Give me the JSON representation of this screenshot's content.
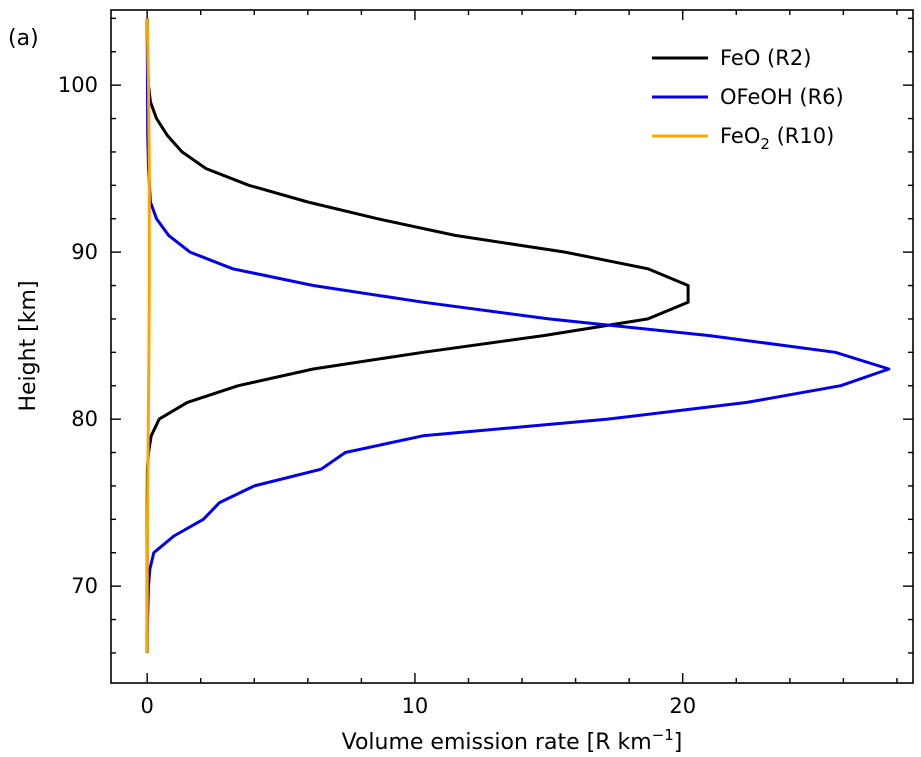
{
  "panel_label": "(a)",
  "chart_data": {
    "type": "line",
    "xlabel": "Volume emission rate [R km",
    "xlabel_sup": "−1",
    "xlabel_tail": "]",
    "ylabel": "Height [km]",
    "xlim": [
      -1.35,
      28.6
    ],
    "ylim": [
      64.2,
      104.5
    ],
    "xticks": [
      0,
      10,
      20
    ],
    "yticks": [
      70,
      80,
      90,
      100
    ],
    "x_minor_step": 2,
    "y_minor_step": 2,
    "legend_position": "top-right",
    "series": [
      {
        "name": "FeO (R2)",
        "color": "#000000",
        "points": [
          [
            0.0,
            104
          ],
          [
            0.02,
            101
          ],
          [
            0.05,
            100
          ],
          [
            0.12,
            99
          ],
          [
            0.35,
            98
          ],
          [
            0.75,
            97
          ],
          [
            1.3,
            96
          ],
          [
            2.2,
            95
          ],
          [
            3.8,
            94
          ],
          [
            6.0,
            93
          ],
          [
            8.6,
            92
          ],
          [
            11.5,
            91
          ],
          [
            15.6,
            90
          ],
          [
            18.7,
            89
          ],
          [
            20.2,
            88
          ],
          [
            20.2,
            87
          ],
          [
            18.7,
            86
          ],
          [
            14.8,
            85
          ],
          [
            10.3,
            84
          ],
          [
            6.2,
            83
          ],
          [
            3.4,
            82
          ],
          [
            1.5,
            81
          ],
          [
            0.45,
            80
          ],
          [
            0.15,
            79
          ],
          [
            0.05,
            78
          ],
          [
            0.01,
            77
          ],
          [
            0.0,
            75
          ],
          [
            0.0,
            70
          ],
          [
            0.0,
            66
          ]
        ]
      },
      {
        "name": "OFeOH (R6)",
        "color": "#0000ee",
        "points": [
          [
            0.0,
            104
          ],
          [
            0.02,
            97
          ],
          [
            0.05,
            95
          ],
          [
            0.12,
            93
          ],
          [
            0.35,
            92
          ],
          [
            0.8,
            91
          ],
          [
            1.6,
            90
          ],
          [
            3.2,
            89
          ],
          [
            6.2,
            88
          ],
          [
            10.3,
            87
          ],
          [
            15.0,
            86
          ],
          [
            21.0,
            85
          ],
          [
            25.7,
            84
          ],
          [
            27.7,
            83
          ],
          [
            25.9,
            82
          ],
          [
            22.4,
            81
          ],
          [
            17.2,
            80
          ],
          [
            10.3,
            79
          ],
          [
            7.4,
            78
          ],
          [
            6.5,
            77
          ],
          [
            4.0,
            76
          ],
          [
            2.7,
            75
          ],
          [
            2.1,
            74
          ],
          [
            1.0,
            73
          ],
          [
            0.25,
            72
          ],
          [
            0.1,
            71
          ],
          [
            0.05,
            70
          ],
          [
            0.0,
            67
          ],
          [
            0.0,
            66
          ]
        ]
      },
      {
        "name": "FeO",
        "name_sub": "2",
        "name_tail": " (R10)",
        "color": "#ffa500",
        "points": [
          [
            0.0,
            104
          ],
          [
            0.05,
            100
          ],
          [
            0.08,
            95
          ],
          [
            0.08,
            88
          ],
          [
            0.06,
            83
          ],
          [
            0.03,
            78
          ],
          [
            0.0,
            72
          ],
          [
            0.0,
            66
          ]
        ]
      }
    ]
  }
}
